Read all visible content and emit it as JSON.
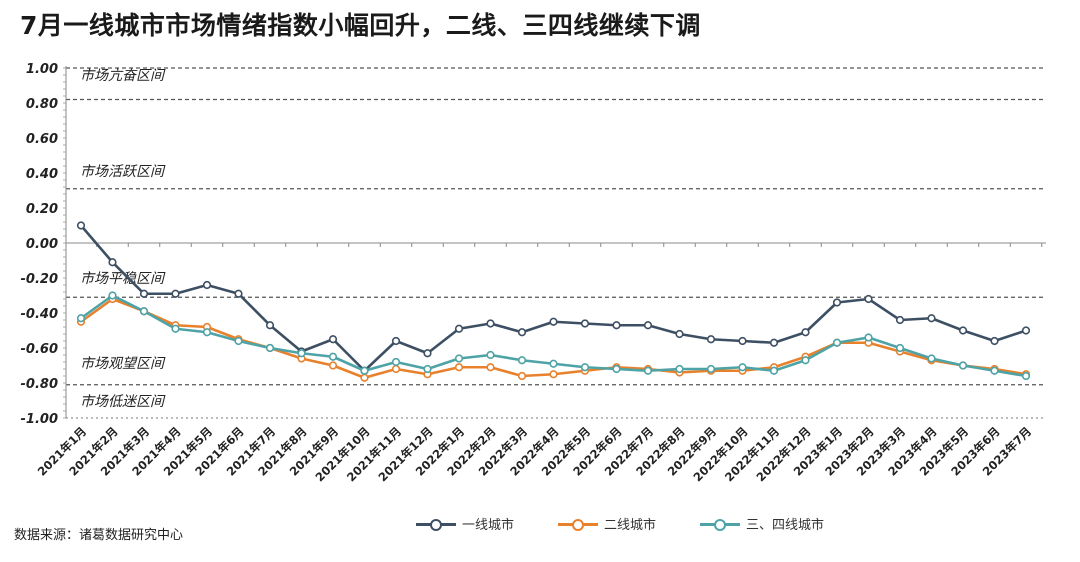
{
  "title": "7月一线城市市场情绪指数小幅回升，二线、三四线继续下调",
  "source": "数据来源：诸葛数据研究中心",
  "chart_data": {
    "type": "line",
    "title": "7月一线城市市场情绪指数小幅回升，二线、三四线继续下调",
    "xlabel": "",
    "ylabel": "",
    "ylim": [
      -1.0,
      1.0
    ],
    "yticks": [
      "1.00",
      "0.80",
      "0.60",
      "0.40",
      "0.20",
      "0.00",
      "-0.20",
      "-0.40",
      "-0.60",
      "-0.80",
      "-1.00"
    ],
    "categories": [
      "2021年1月",
      "2021年2月",
      "2021年3月",
      "2021年4月",
      "2021年5月",
      "2021年6月",
      "2021年7月",
      "2021年8月",
      "2021年9月",
      "2021年10月",
      "2021年11月",
      "2021年12月",
      "2022年1月",
      "2022年2月",
      "2022年3月",
      "2022年4月",
      "2022年5月",
      "2022年6月",
      "2022年7月",
      "2022年8月",
      "2022年9月",
      "2022年10月",
      "2022年11月",
      "2022年12月",
      "2023年1月",
      "2023年2月",
      "2023年3月",
      "2023年4月",
      "2023年5月",
      "2023年6月",
      "2023年7月"
    ],
    "series": [
      {
        "name": "一线城市",
        "color": "#3d4f63",
        "values": [
          0.1,
          -0.11,
          -0.29,
          -0.29,
          -0.24,
          -0.29,
          -0.47,
          -0.62,
          -0.55,
          -0.73,
          -0.56,
          -0.63,
          -0.49,
          -0.46,
          -0.51,
          -0.45,
          -0.46,
          -0.47,
          -0.47,
          -0.52,
          -0.55,
          -0.56,
          -0.57,
          -0.51,
          -0.34,
          -0.32,
          -0.44,
          -0.43,
          -0.5,
          -0.56,
          -0.5
        ]
      },
      {
        "name": "二线城市",
        "color": "#e8812c",
        "values": [
          -0.45,
          -0.32,
          -0.39,
          -0.47,
          -0.48,
          -0.55,
          -0.6,
          -0.66,
          -0.7,
          -0.77,
          -0.72,
          -0.75,
          -0.71,
          -0.71,
          -0.76,
          -0.75,
          -0.73,
          -0.71,
          -0.72,
          -0.74,
          -0.73,
          -0.73,
          -0.71,
          -0.65,
          -0.57,
          -0.57,
          -0.62,
          -0.67,
          -0.7,
          -0.72,
          -0.75
        ]
      },
      {
        "name": "三、四线城市",
        "color": "#4da3a6",
        "values": [
          -0.43,
          -0.3,
          -0.39,
          -0.49,
          -0.51,
          -0.56,
          -0.6,
          -0.63,
          -0.65,
          -0.73,
          -0.68,
          -0.72,
          -0.66,
          -0.64,
          -0.67,
          -0.69,
          -0.71,
          -0.72,
          -0.73,
          -0.72,
          -0.72,
          -0.71,
          -0.73,
          -0.67,
          -0.57,
          -0.54,
          -0.6,
          -0.66,
          -0.7,
          -0.73,
          -0.76
        ]
      }
    ],
    "zones": [
      {
        "label": "市场亢奋区间"
      },
      {
        "label": "市场活跃区间"
      },
      {
        "label": "市场平稳区间"
      },
      {
        "label": "市场观望区间"
      },
      {
        "label": "市场低迷区间"
      }
    ],
    "zone_boundaries": [
      1.0,
      0.82,
      0.31,
      -0.31,
      -0.81,
      -1.0
    ],
    "grid": false,
    "legend_position": "bottom-center"
  }
}
